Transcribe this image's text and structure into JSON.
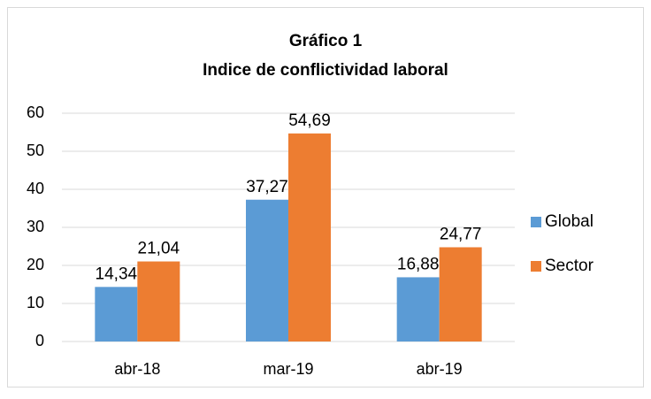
{
  "chart_data": {
    "type": "bar",
    "title": "Gráfico 1",
    "subtitle": "Indice de conflictividad laboral",
    "categories": [
      "abr-18",
      "mar-19",
      "abr-19"
    ],
    "series": [
      {
        "name": "Global",
        "color": "#5b9bd5",
        "values": [
          14.34,
          37.27,
          16.88
        ],
        "value_labels": [
          "14,34",
          "37,27",
          "16,88"
        ]
      },
      {
        "name": "Sector",
        "color": "#ed7d31",
        "values": [
          21.04,
          54.69,
          24.77
        ],
        "value_labels": [
          "21,04",
          "54,69",
          "24,77"
        ]
      }
    ],
    "ylim": [
      0,
      60
    ],
    "yticks": [
      0,
      10,
      20,
      30,
      40,
      50,
      60
    ],
    "grid": true,
    "legend": "right"
  }
}
